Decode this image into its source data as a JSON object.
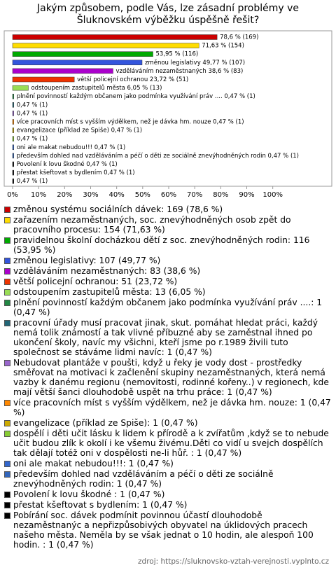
{
  "chart_data": {
    "type": "bar",
    "orientation": "horizontal",
    "title": "Jakým způsobem, podle Vás, lze zásadní problémy ve Šluknovském výběžku úspěšně řešit?",
    "categories": [
      "změnou systému sociálních dávek: 169 (78,6 %)",
      "zařazením nezaměstnaných, soc. znevýhodněných osob zpět do pracovního procesu: 154 (71,63 %)",
      "pravidelnou školní docházkou dětí z soc. znevýhodněných rodin: 116 (53,95 %)",
      "změnou legislativy: 107 (49,77 %)",
      "vzděláváním nezaměstnaných: 83 (38,6 %)",
      "větší policejní ochranou: 51 (23,72 %)",
      "odstoupením zastupitelů města: 13 (6,05 %)",
      "plnění povinností každým občanem jako podmínka využívání práv ....: 1 (0,47 %)",
      "pracovní úřady musí pracovat jinak, skut. pomáhat hledat práci, každý nemá tolik známostí a tak vlivné příbuzné aby se zaměstnal ihned po ukončení školy, navíc my všichni, kteří jsme po  r.1989 živili tuto společnost se stáváme lidmi navíc: 1 (0,47 %)",
      "Nebudovat plantáže v poušti, když u řeky je vody dost - prostředky směřovat na motivaci k začlenění  skupiny nezaměstnaných, která nemá vazby k danému regionu (nemovitosti, rodinné kořeny..) v regionech, kde mají větší šanci dlouhodobě uspět na trhu práce: 1 (0,47 %)",
      "více pracovních míst s vyšším výdělkem, než je dávka hm. nouze: 1 (0,47 %)",
      "evangelizace (příklad ze Spiše): 1 (0,47 %)",
      "dospělí i děti učit lásku k lidem k přírodě a k zvířatům ,když se to nebude učit budou zlík k okolí i ke všemu živému.Děti co vidí u svejch dospělích tak dělají totéž oni v dospělosti ne-li hůř. : 1 (0,47 %)",
      "oni ale makat nebudou!!!: 1 (0,47 %)",
      "především dohled nad vzděláváním a péčí o děti ze sociálně znevýhodněných rodin: 1 (0,47 %)",
      "Povolení k lovu škodné : 1 (0,47 %)",
      "přestat kšeftovat s bydlením: 1 (0,47 %)",
      "Pobírání soc. dávek podmínit povinnou účastí dlouhodobě nezaměstnanýc a nepřizpůsobivých obyvatel na úklidových pracech našeho města. Neměla by se však jednat o 10 hodin, ale alespoň 100 hodin. : 1 (0,47 %)"
    ],
    "values": [
      78.6,
      71.63,
      53.95,
      49.77,
      38.6,
      23.72,
      6.05,
      0.47,
      0.47,
      0.47,
      0.47,
      0.47,
      0.47,
      0.47,
      0.47,
      0.47,
      0.47,
      0.47
    ],
    "value_labels": [
      "78,6 % (169)",
      "71,63 % (154)",
      "53,95 % (116)",
      "změnou legislativy 49,77 % (107)",
      "vzděláváním nezaměstnaných 38,6 % (83)",
      "větší policejní ochranou 23,72 % (51)",
      "odstoupením zastupitelů města 6,05 % (13)",
      "plnění povinností každým občanem jako podmínka využívání práv .... 0,47 % (1)",
      "0,47 % (1)",
      "0,47 % (1)",
      "více pracovních míst s vyšším výdělkem, než je dávka hm. nouze 0,47 % (1)",
      "evangelizace (příklad ze Spiše) 0,47 % (1)",
      "0,47 % (1)",
      "oni ale makat nebudou!!! 0,47 % (1)",
      "především dohled nad vzděláváním a péčí o děti ze sociálně znevýhodněných rodin 0,47 % (1)",
      "Povolení k lovu škodné  0,47 % (1)",
      "přestat kšeftovat s bydlením 0,47 % (1)",
      "0,47 % (1)"
    ],
    "colors": [
      "#cc0000",
      "#ffdd00",
      "#00aa00",
      "#3355dd",
      "#aa00cc",
      "#ee3300",
      "#99dd55",
      "#228844",
      "#226677",
      "#9966cc",
      "#ff8800",
      "#ccaa00",
      "#88cc33",
      "#3366cc",
      "#3366bb",
      "#000000",
      "#000000",
      "#000000"
    ],
    "xlim": [
      0,
      120
    ],
    "xticks": [
      {
        "value": 0,
        "label": "0%"
      },
      {
        "value": 10,
        "label": "10%"
      },
      {
        "value": 20,
        "label": "20%"
      },
      {
        "value": 30,
        "label": "30%"
      },
      {
        "value": 40,
        "label": "40%"
      },
      {
        "value": 50,
        "label": "50%"
      },
      {
        "value": 60,
        "label": "60%"
      },
      {
        "value": 70,
        "label": "70%"
      },
      {
        "value": 80,
        "label": "80%"
      },
      {
        "value": 90,
        "label": "90%"
      },
      {
        "value": 100,
        "label": "100%"
      }
    ],
    "source": "zdroj: https://sluknovsko-vztah-verejnosti.vyplnto.cz"
  }
}
